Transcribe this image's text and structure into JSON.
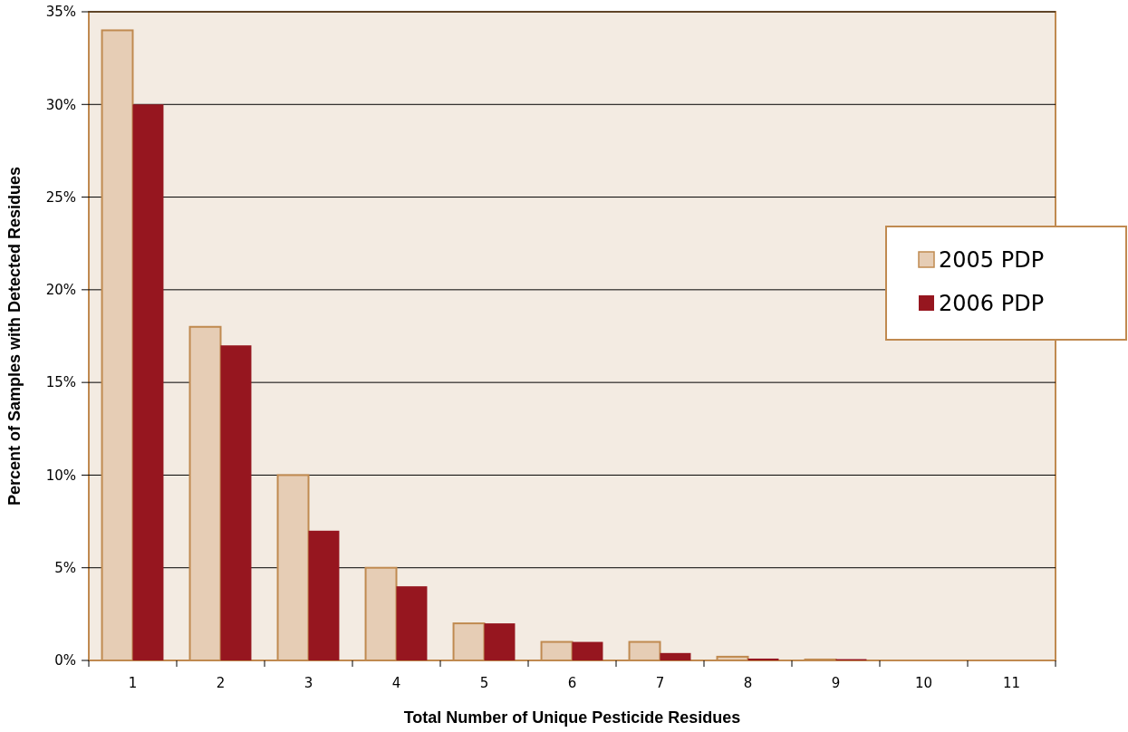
{
  "chart_data": {
    "type": "bar",
    "xlabel": "Total Number of Unique Pesticide Residues",
    "ylabel": "Percent of Samples with Detected Residues",
    "categories": [
      "1",
      "2",
      "3",
      "4",
      "5",
      "6",
      "7",
      "8",
      "9",
      "10",
      "11"
    ],
    "series": [
      {
        "name": "2005 PDP",
        "color": "#e6cdb5",
        "values": [
          34,
          18,
          10,
          5,
          2,
          1,
          1,
          0.2,
          0.05,
          0,
          0
        ]
      },
      {
        "name": "2006 PDP",
        "color": "#96161f",
        "values": [
          30,
          17,
          7,
          4,
          2,
          1,
          0.4,
          0.1,
          0.07,
          0,
          0
        ]
      }
    ],
    "ylim": [
      0,
      35
    ],
    "yticks": [
      {
        "value": 0,
        "label": "0%"
      },
      {
        "value": 5,
        "label": "5%"
      },
      {
        "value": 10,
        "label": "10%"
      },
      {
        "value": 15,
        "label": "15%"
      },
      {
        "value": 20,
        "label": "20%"
      },
      {
        "value": 25,
        "label": "25%"
      },
      {
        "value": 30,
        "label": "30%"
      },
      {
        "value": 35,
        "label": "35%"
      }
    ],
    "grid": "y",
    "legend": "right"
  }
}
